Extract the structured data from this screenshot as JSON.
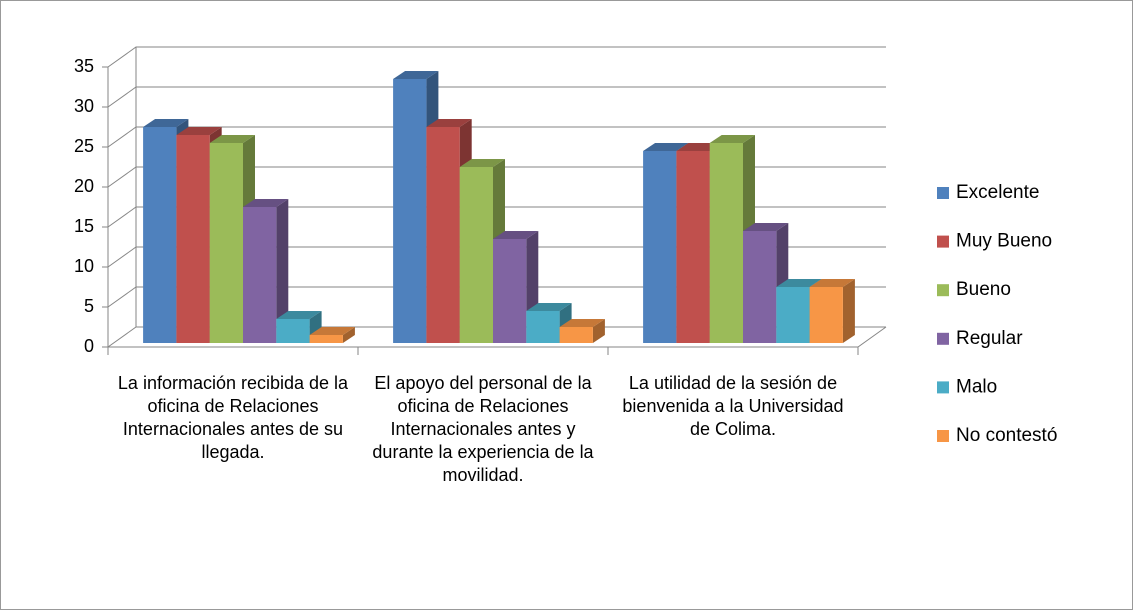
{
  "chart_data": {
    "type": "bar3d",
    "categories": [
      "La información recibida de la oficina de Relaciones Internacionales antes de su llegada.",
      "El apoyo del personal de la oficina de Relaciones Internacionales antes y durante la experiencia de la movilidad.",
      "La utilidad de la sesión de bienvenida a la Universidad de Colima."
    ],
    "series": [
      {
        "name": "Excelente",
        "color": "#4f81bd",
        "values": [
          27,
          33,
          24
        ]
      },
      {
        "name": "Muy Bueno",
        "color": "#c0504d",
        "values": [
          26,
          27,
          24
        ]
      },
      {
        "name": "Bueno",
        "color": "#9bbb59",
        "values": [
          25,
          22,
          25
        ]
      },
      {
        "name": "Regular",
        "color": "#8064a2",
        "values": [
          17,
          13,
          14
        ]
      },
      {
        "name": "Malo",
        "color": "#4bacc6",
        "values": [
          3,
          4,
          7
        ]
      },
      {
        "name": "No contestó",
        "color": "#f79646",
        "values": [
          1,
          2,
          7
        ]
      }
    ],
    "ylim": [
      0,
      35
    ],
    "yticks": [
      0,
      5,
      10,
      15,
      20,
      25,
      30,
      35
    ],
    "grid": true,
    "legend": "right"
  }
}
